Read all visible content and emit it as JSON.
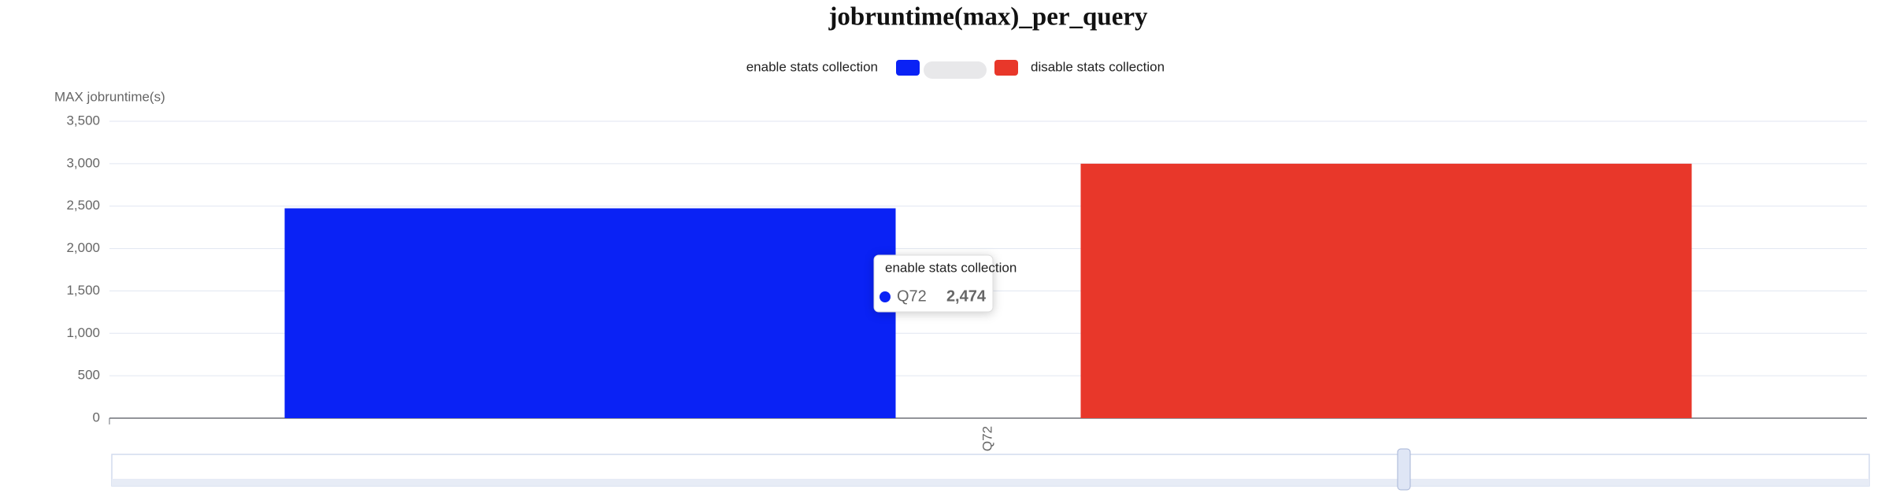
{
  "chart_data": {
    "type": "bar",
    "title": "jobruntime(max)_per_query",
    "y_label": "MAX jobruntime(s)",
    "categories": [
      "Q72"
    ],
    "series": [
      {
        "name": "enable stats collection",
        "color": "#0a22f5",
        "values": [
          2474
        ],
        "value_labels": [
          "2,474"
        ]
      },
      {
        "name": "disable stats collection",
        "color": "#e8372a",
        "values": [
          3000
        ]
      }
    ],
    "ylim": [
      0,
      3500
    ],
    "yticks": [
      0,
      500,
      {
        "value": 1000,
        "label": "1,000"
      },
      {
        "value": 1500,
        "label": "1,500"
      },
      {
        "value": 2000,
        "label": "2,000"
      },
      {
        "value": 2500,
        "label": "2,500"
      },
      {
        "value": 3000,
        "label": "3,000"
      },
      {
        "value": 3500,
        "label": "3,500"
      }
    ],
    "grid": true
  }
}
